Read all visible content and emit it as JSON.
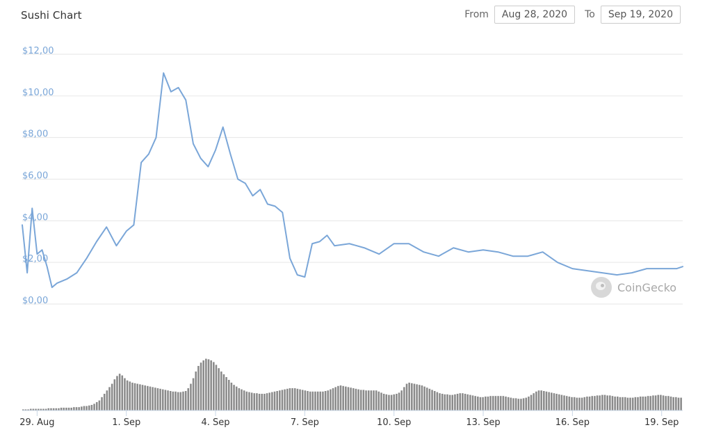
{
  "header": {
    "title": "Sushi Chart",
    "from_label": "From",
    "from_value": "Aug 28, 2020",
    "to_label": "To",
    "to_value": "Sep 19, 2020"
  },
  "watermark": {
    "text": "CoinGecko",
    "icon": "coingecko-logo-icon"
  },
  "chart_data": {
    "type": "line",
    "x_ticks": [
      "29. Aug",
      "1. Sep",
      "4. Sep",
      "7. Sep",
      "10. Sep",
      "13. Sep",
      "16. Sep",
      "19. Sep"
    ],
    "y_ticks": [
      "$0,00",
      "$2,00",
      "$4,00",
      "$6,00",
      "$8,00",
      "$10,00",
      "$12,00"
    ],
    "ylim": [
      0,
      12
    ],
    "x_range": [
      "2020-08-28T12:00",
      "2020-09-19T17:00"
    ],
    "price_series": {
      "x": [
        "2020-08-28T12:00",
        "2020-08-28T16:00",
        "2020-08-28T20:00",
        "2020-08-29T00:00",
        "2020-08-29T04:00",
        "2020-08-29T08:00",
        "2020-08-29T12:00",
        "2020-08-29T16:00",
        "2020-08-30T00:00",
        "2020-08-30T08:00",
        "2020-08-30T16:00",
        "2020-08-31T00:00",
        "2020-08-31T08:00",
        "2020-08-31T16:00",
        "2020-09-01T00:00",
        "2020-09-01T06:00",
        "2020-09-01T12:00",
        "2020-09-01T18:00",
        "2020-09-02T00:00",
        "2020-09-02T06:00",
        "2020-09-02T12:00",
        "2020-09-02T18:00",
        "2020-09-03T00:00",
        "2020-09-03T06:00",
        "2020-09-03T12:00",
        "2020-09-03T18:00",
        "2020-09-04T00:00",
        "2020-09-04T06:00",
        "2020-09-04T12:00",
        "2020-09-04T18:00",
        "2020-09-05T00:00",
        "2020-09-05T06:00",
        "2020-09-05T12:00",
        "2020-09-05T18:00",
        "2020-09-06T00:00",
        "2020-09-06T06:00",
        "2020-09-06T12:00",
        "2020-09-06T18:00",
        "2020-09-07T00:00",
        "2020-09-07T06:00",
        "2020-09-07T12:00",
        "2020-09-07T18:00",
        "2020-09-08T00:00",
        "2020-09-08T12:00",
        "2020-09-09T00:00",
        "2020-09-09T12:00",
        "2020-09-10T00:00",
        "2020-09-10T12:00",
        "2020-09-11T00:00",
        "2020-09-11T12:00",
        "2020-09-12T00:00",
        "2020-09-12T12:00",
        "2020-09-13T00:00",
        "2020-09-13T12:00",
        "2020-09-14T00:00",
        "2020-09-14T12:00",
        "2020-09-15T00:00",
        "2020-09-15T12:00",
        "2020-09-16T00:00",
        "2020-09-16T12:00",
        "2020-09-17T00:00",
        "2020-09-17T12:00",
        "2020-09-18T00:00",
        "2020-09-18T12:00",
        "2020-09-19T00:00",
        "2020-09-19T12:00",
        "2020-09-19T17:00"
      ],
      "y": [
        3.8,
        1.5,
        4.6,
        2.4,
        2.6,
        1.8,
        0.8,
        1.0,
        1.2,
        1.5,
        2.2,
        3.0,
        3.7,
        2.8,
        3.5,
        3.8,
        6.8,
        7.2,
        8.0,
        11.1,
        10.2,
        10.4,
        9.8,
        7.7,
        7.0,
        6.6,
        7.4,
        8.5,
        7.2,
        6.0,
        5.8,
        5.2,
        5.5,
        4.8,
        4.7,
        4.4,
        2.2,
        1.4,
        1.3,
        2.9,
        3.0,
        3.3,
        2.8,
        2.9,
        2.7,
        2.4,
        2.9,
        2.9,
        2.5,
        2.3,
        2.7,
        2.5,
        2.6,
        2.5,
        2.3,
        2.3,
        2.5,
        2.0,
        1.7,
        1.6,
        1.5,
        1.4,
        1.5,
        1.7,
        1.7,
        1.7,
        1.8
      ],
      "color": "#7aa6d8"
    },
    "volume_series": {
      "color": "#8a8a8a",
      "values": [
        0.02,
        0.02,
        0.02,
        0.03,
        0.03,
        0.03,
        0.03,
        0.03,
        0.03,
        0.03,
        0.04,
        0.04,
        0.04,
        0.04,
        0.04,
        0.05,
        0.05,
        0.05,
        0.05,
        0.05,
        0.06,
        0.06,
        0.06,
        0.07,
        0.08,
        0.08,
        0.09,
        0.1,
        0.12,
        0.15,
        0.18,
        0.24,
        0.3,
        0.36,
        0.42,
        0.48,
        0.56,
        0.62,
        0.66,
        0.63,
        0.58,
        0.54,
        0.52,
        0.5,
        0.49,
        0.48,
        0.47,
        0.46,
        0.45,
        0.44,
        0.43,
        0.42,
        0.41,
        0.4,
        0.39,
        0.38,
        0.37,
        0.36,
        0.35,
        0.34,
        0.34,
        0.33,
        0.33,
        0.34,
        0.35,
        0.4,
        0.48,
        0.58,
        0.7,
        0.8,
        0.86,
        0.9,
        0.93,
        0.92,
        0.9,
        0.87,
        0.82,
        0.76,
        0.7,
        0.65,
        0.6,
        0.55,
        0.5,
        0.46,
        0.43,
        0.4,
        0.38,
        0.36,
        0.34,
        0.33,
        0.32,
        0.31,
        0.31,
        0.3,
        0.3,
        0.3,
        0.31,
        0.32,
        0.33,
        0.34,
        0.35,
        0.36,
        0.37,
        0.38,
        0.39,
        0.4,
        0.4,
        0.4,
        0.39,
        0.38,
        0.37,
        0.36,
        0.35,
        0.34,
        0.34,
        0.34,
        0.34,
        0.34,
        0.34,
        0.35,
        0.36,
        0.38,
        0.4,
        0.42,
        0.44,
        0.45,
        0.44,
        0.43,
        0.42,
        0.41,
        0.4,
        0.39,
        0.38,
        0.37,
        0.37,
        0.36,
        0.36,
        0.36,
        0.36,
        0.36,
        0.34,
        0.32,
        0.3,
        0.29,
        0.28,
        0.28,
        0.29,
        0.3,
        0.32,
        0.36,
        0.42,
        0.48,
        0.5,
        0.49,
        0.48,
        0.47,
        0.46,
        0.45,
        0.43,
        0.41,
        0.39,
        0.37,
        0.35,
        0.33,
        0.31,
        0.3,
        0.29,
        0.29,
        0.28,
        0.28,
        0.29,
        0.3,
        0.31,
        0.31,
        0.3,
        0.29,
        0.28,
        0.27,
        0.26,
        0.25,
        0.24,
        0.24,
        0.25,
        0.25,
        0.26,
        0.26,
        0.26,
        0.26,
        0.26,
        0.26,
        0.25,
        0.24,
        0.23,
        0.22,
        0.22,
        0.21,
        0.21,
        0.22,
        0.23,
        0.25,
        0.28,
        0.31,
        0.34,
        0.36,
        0.36,
        0.35,
        0.34,
        0.33,
        0.32,
        0.31,
        0.3,
        0.29,
        0.28,
        0.27,
        0.26,
        0.25,
        0.24,
        0.24,
        0.23,
        0.23,
        0.23,
        0.24,
        0.25,
        0.25,
        0.26,
        0.26,
        0.27,
        0.27,
        0.28,
        0.28,
        0.27,
        0.27,
        0.26,
        0.25,
        0.25,
        0.24,
        0.24,
        0.24,
        0.23,
        0.23,
        0.23,
        0.24,
        0.24,
        0.25,
        0.25,
        0.25,
        0.26,
        0.26,
        0.27,
        0.27,
        0.28,
        0.28,
        0.27,
        0.26,
        0.26,
        0.25,
        0.24,
        0.24,
        0.23,
        0.23
      ]
    }
  }
}
